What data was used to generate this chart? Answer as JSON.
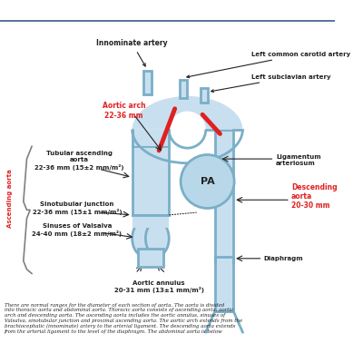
{
  "bg_color": "#ffffff",
  "aorta_color": "#7aafc7",
  "aorta_lw": 2.0,
  "aorta_fill": "#c8dff0",
  "red_color": "#e02020",
  "arrow_color": "#222222",
  "text_color": "#222222",
  "red_text_color": "#e02020",
  "pa_fill": "#b8d8ea",
  "caption_text": "There are normal ranges for the diameter of each section of aorta. The aorta is divided\ninto thoracic aorta and abdominal aorta. Thoracic aorta consists of ascending aorta, aortic\narch and descending aorta. The ascending aorta includes the aortic annulus, sinuses of\nValsalva, sinotubular junction and proximal ascending aorta. The aortic arch extends from the\nbrachiocephalic (innominate) artery to the arterial ligament. The descending aorta extends\nfrom the arterial ligament to the level of the diaphragm. The abdominal aorta is below",
  "title_line_color": "#3a5a8c",
  "labels": {
    "innominate": "Innominate artery",
    "left_carotid": "Left common carotid artery",
    "left_subclavian": "Left subclavian artery",
    "ligamentum": "Ligamentum\narteriosum",
    "aortic_arch": "Aortic arch\n22-36 mm",
    "tubular": "Tubular ascending\naorta\n22-36 mm (15±2 mm/m²)",
    "sinotubular": "Sinotubular junction\n22-36 mm (15±1 mm/m²)",
    "valsalva": "Sinuses of Valsalva\n24-40 mm (18±2 mm/m²)",
    "annulus": "Aortic annulus\n20-31 mm (13±1 mm/m²)",
    "descending": "Descending\naorta\n20-30 mm",
    "diaphragm": "Diaphragm",
    "ascending_label": "Ascending aorta",
    "pa": "PA"
  }
}
